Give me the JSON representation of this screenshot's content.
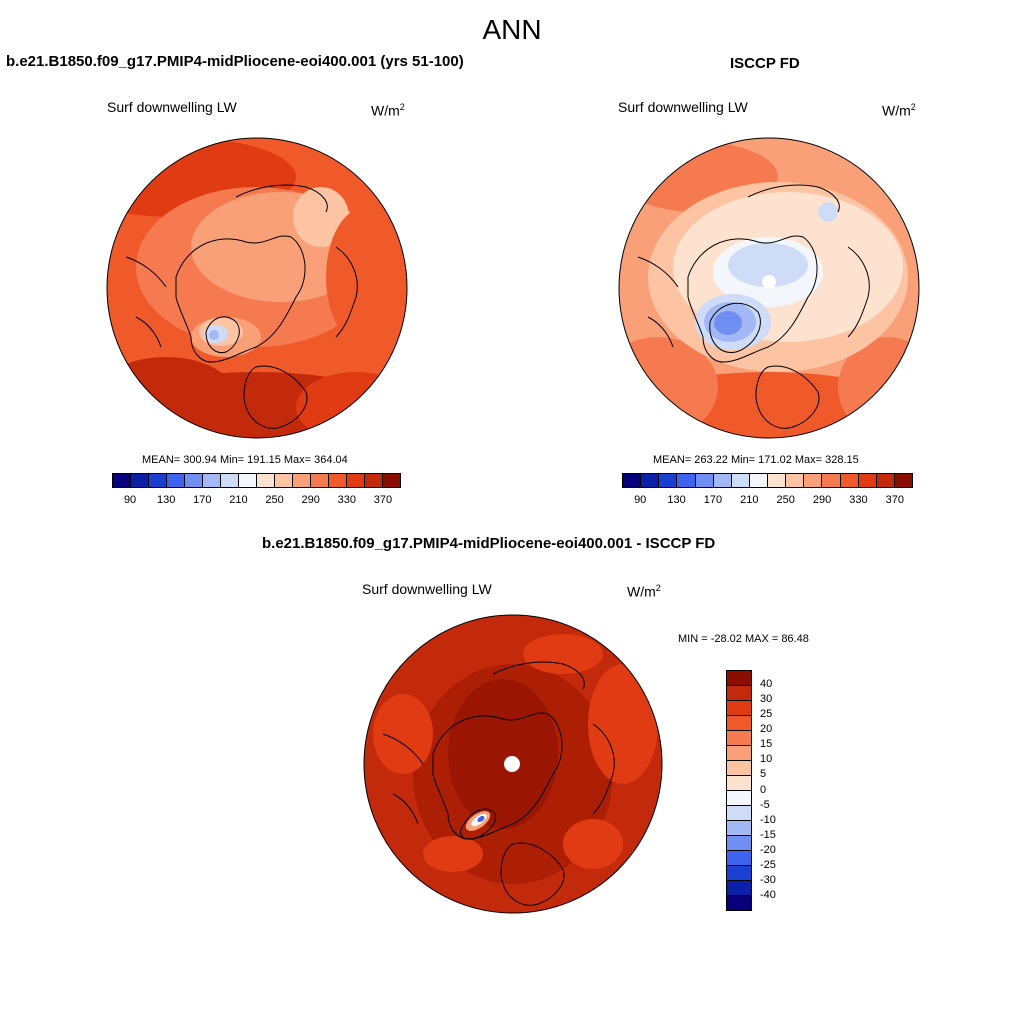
{
  "main_title": "ANN",
  "panels": {
    "left": {
      "title": "b.e21.B1850.f09_g17.PMIP4-midPliocene-eoi400.001 (yrs 51-100)",
      "var_label": "Surf downwelling LW",
      "units": "W/m",
      "units_exp": "2",
      "stats": "MEAN= 300.94  Min= 191.15  Max= 364.04"
    },
    "right": {
      "title": "ISCCP FD",
      "var_label": "Surf downwelling LW",
      "units": "W/m",
      "units_exp": "2",
      "stats": "MEAN= 263.22  Min= 171.02  Max= 328.15"
    },
    "diff": {
      "title": "b.e21.B1850.f09_g17.PMIP4-midPliocene-eoi400.001 - ISCCP FD",
      "var_label": "Surf downwelling LW",
      "units": "W/m",
      "units_exp": "2",
      "stats": "MIN = -28.02 MAX =  86.48"
    }
  },
  "colorbar_abs": {
    "ticks": [
      "90",
      "130",
      "170",
      "210",
      "250",
      "290",
      "330",
      "370"
    ],
    "colors": [
      "#08007a",
      "#0b1fa8",
      "#1b3fd0",
      "#3d63ef",
      "#6f8ff3",
      "#a2b9f5",
      "#cfdcf7",
      "#f3f6fb",
      "#fde2cf",
      "#fcc4a2",
      "#f9a079",
      "#f57a50",
      "#f05a2a",
      "#e03b12",
      "#c22a0b",
      "#8b0e00"
    ]
  },
  "colorbar_diff": {
    "ticks": [
      "40",
      "30",
      "25",
      "20",
      "15",
      "10",
      "5",
      "0",
      "-5",
      "-10",
      "-15",
      "-20",
      "-25",
      "-30",
      "-40"
    ],
    "colors": [
      "#8b0e00",
      "#c22a0b",
      "#e03b12",
      "#f05a2a",
      "#f57a50",
      "#f9a079",
      "#fcc4a2",
      "#fde2cf",
      "#f3f6fb",
      "#cfdcf7",
      "#a2b9f5",
      "#6f8ff3",
      "#3d63ef",
      "#1b3fd0",
      "#0b1fa8",
      "#08007a"
    ]
  }
}
